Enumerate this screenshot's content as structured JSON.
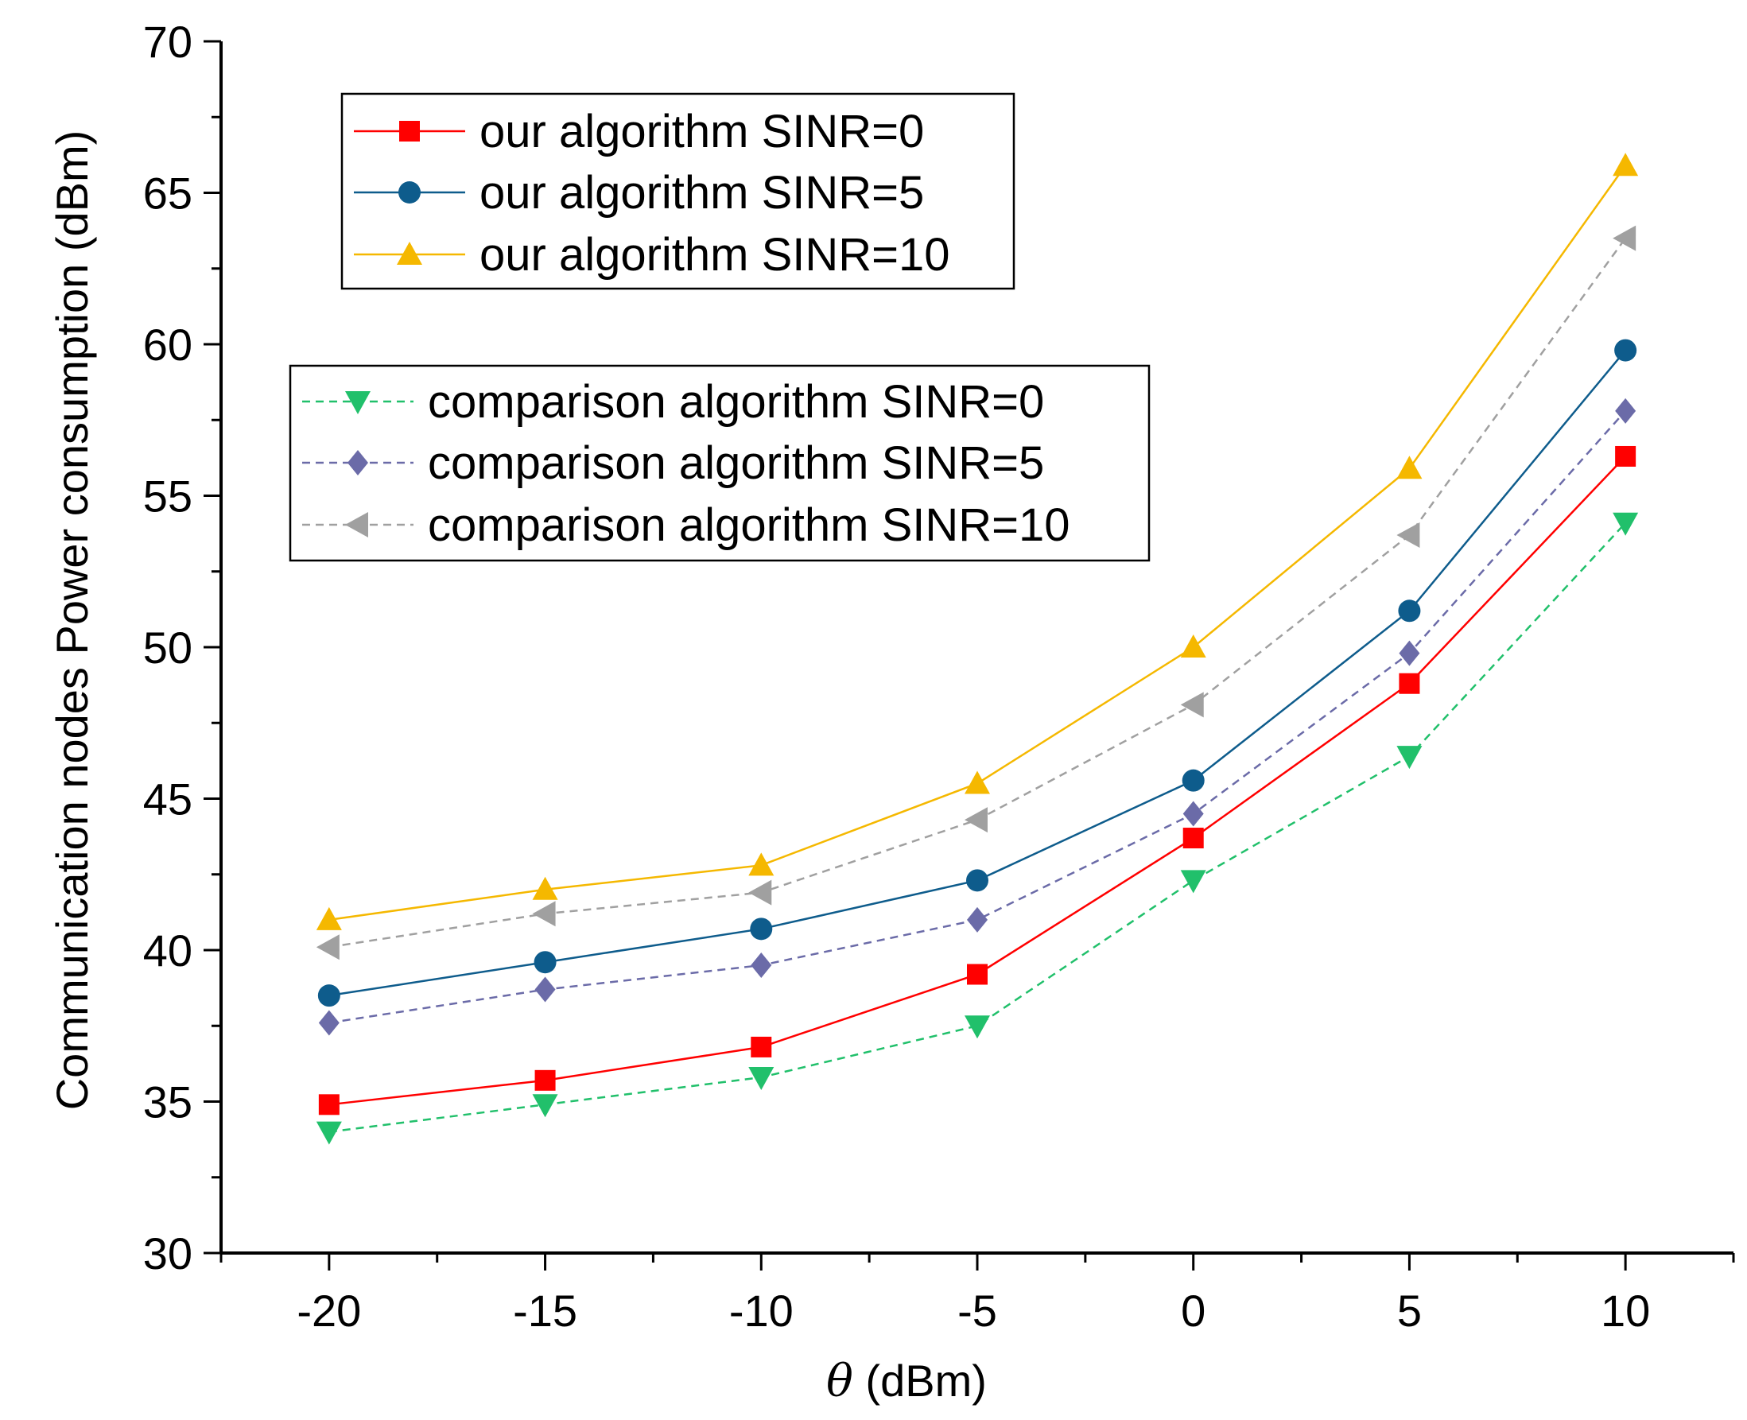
{
  "chart_data": {
    "type": "line",
    "title": "",
    "xlabel_symbol": "θ",
    "xlabel_unit": " (dBm)",
    "ylabel": "Communication nodes Power consumption (dBm)",
    "x": [
      -20,
      -15,
      -10,
      -5,
      0,
      5,
      10
    ],
    "x_tick_labels": [
      "-20",
      "-15",
      "-10",
      "-5",
      "0",
      "5",
      "10"
    ],
    "y_tick_labels": [
      "30",
      "35",
      "40",
      "45",
      "50",
      "55",
      "60",
      "65",
      "70"
    ],
    "xlim": [
      -22.5,
      12.5
    ],
    "ylim": [
      30,
      70
    ],
    "grid": false,
    "series": [
      {
        "name": "our algorithm SINR=0",
        "color": "#ff0000",
        "marker": "square",
        "line_style": "solid",
        "values": [
          34.9,
          35.7,
          36.8,
          39.2,
          43.7,
          48.8,
          56.3
        ]
      },
      {
        "name": "our algorithm SINR=5",
        "color": "#0e5c8c",
        "marker": "circle",
        "line_style": "solid",
        "values": [
          38.5,
          39.6,
          40.7,
          42.3,
          45.6,
          51.2,
          59.8
        ]
      },
      {
        "name": "our algorithm SINR=10",
        "color": "#f5b800",
        "marker": "triangle-up",
        "line_style": "solid",
        "values": [
          41.0,
          42.0,
          42.8,
          45.5,
          50.0,
          55.9,
          65.9
        ]
      },
      {
        "name": "comparison algorithm SINR=0",
        "color": "#21c06b",
        "marker": "triangle-down",
        "line_style": "dashed",
        "values": [
          34.0,
          34.9,
          35.8,
          37.5,
          42.3,
          46.4,
          54.1
        ]
      },
      {
        "name": "comparison algorithm SINR=5",
        "color": "#6b6ba8",
        "marker": "diamond",
        "line_style": "dashed",
        "values": [
          37.6,
          38.7,
          39.5,
          41.0,
          44.5,
          49.8,
          57.8
        ]
      },
      {
        "name": "comparison algorithm SINR=10",
        "color": "#a0a0a0",
        "marker": "triangle-left",
        "line_style": "dashed",
        "values": [
          40.1,
          41.2,
          41.9,
          44.3,
          48.1,
          53.7,
          63.5
        ]
      }
    ],
    "legends": [
      {
        "placement": "top-left",
        "series": [
          0,
          1,
          2
        ]
      },
      {
        "placement": "upper-left",
        "series": [
          3,
          4,
          5
        ]
      }
    ]
  }
}
